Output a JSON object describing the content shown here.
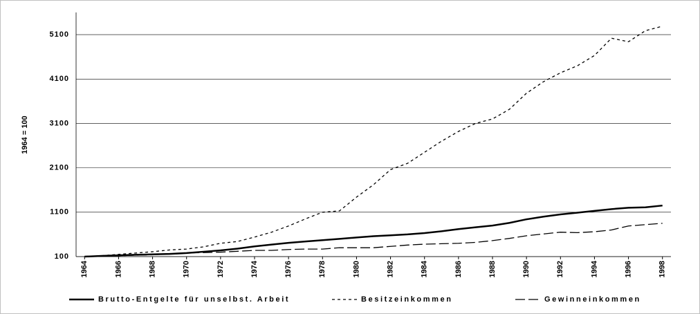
{
  "chart_data": {
    "type": "line",
    "y_label": "1964 = 100",
    "x": [
      1964,
      1965,
      1966,
      1967,
      1968,
      1969,
      1970,
      1971,
      1972,
      1973,
      1974,
      1975,
      1976,
      1977,
      1978,
      1979,
      1980,
      1981,
      1982,
      1983,
      1984,
      1985,
      1986,
      1987,
      1988,
      1989,
      1990,
      1991,
      1992,
      1993,
      1994,
      1995,
      1996,
      1997,
      1998
    ],
    "xlim": [
      1963.5,
      1998.5
    ],
    "xticks": [
      1964,
      1966,
      1968,
      1970,
      1972,
      1974,
      1976,
      1978,
      1980,
      1982,
      1984,
      1986,
      1988,
      1990,
      1992,
      1994,
      1996,
      1998
    ],
    "ylim": [
      100,
      5600
    ],
    "yticks": [
      100,
      1100,
      2100,
      3100,
      4100,
      5100
    ],
    "grid": true,
    "legend": "bottom",
    "series": [
      {
        "name": "Brutto-Entgelte für unselbst. Arbeit",
        "color": "#000000",
        "dash": "solid",
        "values": [
          100,
          115,
          130,
          140,
          150,
          160,
          180,
          210,
          240,
          280,
          330,
          370,
          410,
          440,
          470,
          500,
          530,
          560,
          580,
          600,
          630,
          670,
          720,
          760,
          800,
          860,
          940,
          1000,
          1050,
          1090,
          1130,
          1170,
          1200,
          1210,
          1250
        ]
      },
      {
        "name": "Besitzeinkommen",
        "color": "#000000",
        "dash": "short",
        "values": [
          100,
          120,
          150,
          180,
          210,
          250,
          270,
          320,
          400,
          440,
          540,
          650,
          790,
          950,
          1100,
          1130,
          1440,
          1720,
          2060,
          2200,
          2450,
          2700,
          2920,
          3100,
          3200,
          3420,
          3780,
          4040,
          4240,
          4400,
          4630,
          5020,
          4940,
          5190,
          5290
        ]
      },
      {
        "name": "Gewinneinkommen",
        "color": "#000000",
        "dash": "long",
        "values": [
          100,
          110,
          120,
          130,
          140,
          160,
          180,
          190,
          200,
          220,
          240,
          240,
          260,
          270,
          270,
          300,
          300,
          300,
          330,
          360,
          380,
          390,
          400,
          420,
          460,
          510,
          570,
          610,
          650,
          640,
          660,
          700,
          790,
          820,
          850
        ]
      }
    ]
  }
}
